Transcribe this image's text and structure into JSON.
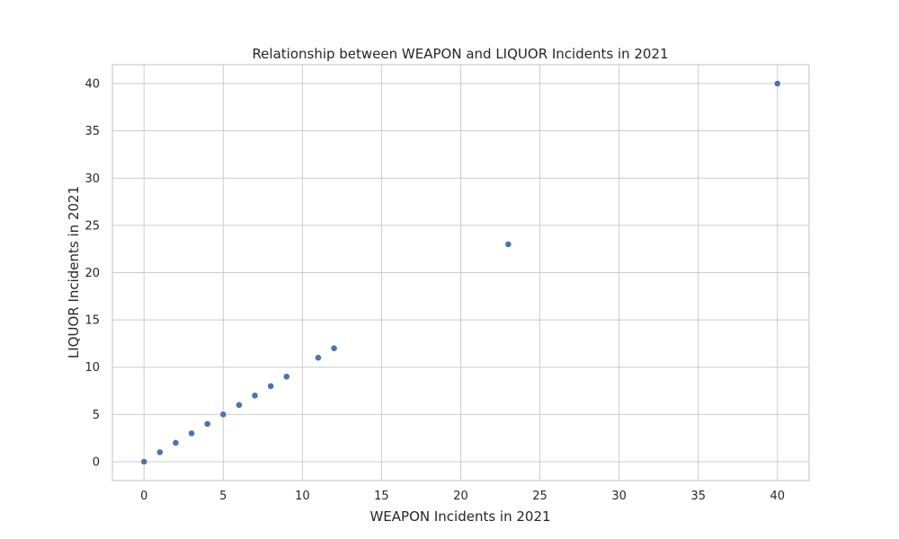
{
  "chart_data": {
    "type": "scatter",
    "title": "Relationship between WEAPON and LIQUOR Incidents in 2021",
    "xlabel": "WEAPON Incidents in 2021",
    "ylabel": "LIQUOR Incidents in 2021",
    "xlim": [
      -2,
      42
    ],
    "ylim": [
      -2,
      42
    ],
    "xticks": [
      0,
      5,
      10,
      15,
      20,
      25,
      30,
      35,
      40
    ],
    "yticks": [
      0,
      5,
      10,
      15,
      20,
      25,
      30,
      35,
      40
    ],
    "grid": true,
    "point_color": "#4c72b0",
    "points": [
      {
        "x": 0,
        "y": 0
      },
      {
        "x": 1,
        "y": 1
      },
      {
        "x": 2,
        "y": 2
      },
      {
        "x": 3,
        "y": 3
      },
      {
        "x": 4,
        "y": 4
      },
      {
        "x": 5,
        "y": 5
      },
      {
        "x": 6,
        "y": 6
      },
      {
        "x": 7,
        "y": 7
      },
      {
        "x": 8,
        "y": 8
      },
      {
        "x": 9,
        "y": 9
      },
      {
        "x": 11,
        "y": 11
      },
      {
        "x": 12,
        "y": 12
      },
      {
        "x": 23,
        "y": 23
      },
      {
        "x": 40,
        "y": 40
      }
    ]
  }
}
